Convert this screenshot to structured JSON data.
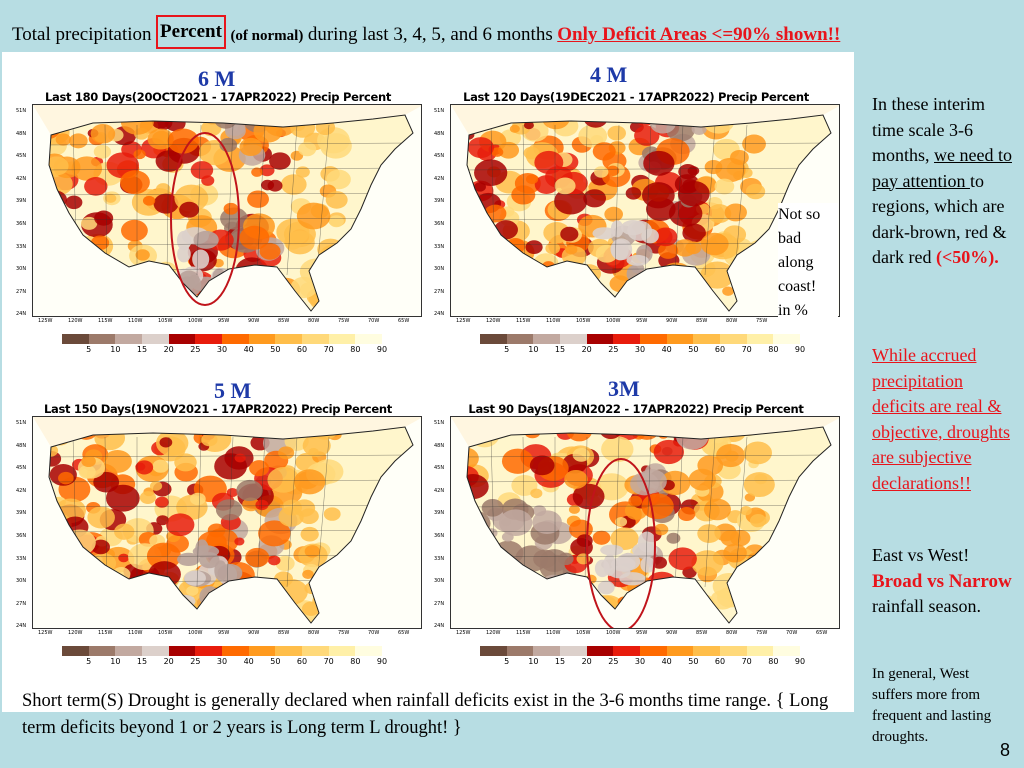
{
  "title": {
    "part1": "Total precipitation",
    "percent": "Percent",
    "of_normal": "(of normal)",
    "part2": "during last 3, 4, 5, and 6  months",
    "deficit": " Only Deficit Areas <=90% shown!!"
  },
  "maps": [
    {
      "id": "6m",
      "period_label": "6 M",
      "title": "Last 180 Days(20OCT2021 - 17APR2022) Precip Percent",
      "has_oval": true
    },
    {
      "id": "4m",
      "period_label": "4 M",
      "title": "Last 120 Days(19DEC2021 - 17APR2022) Precip Percent",
      "has_oval": false
    },
    {
      "id": "5m",
      "period_label": "5 M",
      "title": "Last 150 Days(19NOV2021 - 17APR2022) Precip Percent",
      "has_oval": false
    },
    {
      "id": "3m",
      "period_label": "3M",
      "title": "Last 90 Days(18JAN2022 - 17APR2022) Precip Percent",
      "has_oval": true
    }
  ],
  "lat_labels": [
    "51N",
    "48N",
    "45N",
    "42N",
    "39N",
    "36N",
    "33N",
    "30N",
    "27N",
    "24N"
  ],
  "lon_labels": [
    "125W",
    "120W",
    "115W",
    "110W",
    "105W",
    "100W",
    "95W",
    "90W",
    "85W",
    "80W",
    "75W",
    "70W",
    "65W"
  ],
  "legend": {
    "labels": [
      "5",
      "10",
      "15",
      "20",
      "25",
      "30",
      "40",
      "50",
      "60",
      "70",
      "80",
      "90"
    ],
    "colors": [
      "#6b4a3a",
      "#9c7a6a",
      "#c2a9a0",
      "#dcd0cb",
      "#a80000",
      "#e81c0c",
      "#ff6a00",
      "#ff9a1e",
      "#ffbe4a",
      "#ffd97a",
      "#fff0a8",
      "#fffde0"
    ]
  },
  "coast_note": [
    "Not so",
    "bad",
    "along",
    "coast!",
    "in %"
  ],
  "side": {
    "p1_a": "In these interim time scale 3-6 months, ",
    "p1_we": "we need to pay attention ",
    "p1_b": "to regions, which are dark-brown, red & dark red ",
    "p1_bold": "(<50%).",
    "p2": "While accrued precipitation deficits are real & objective, droughts are subjective declarations!!",
    "p3_a": "East  vs  West!",
    "p3_bold": "Broad vs Narrow",
    "p3_b": " rainfall season.",
    "p4": "In general, West suffers more from frequent and lasting droughts."
  },
  "bottom": "Short term(S) Drought is generally declared when rainfall deficits exist in the 3-6 months time range. { Long term deficits beyond 1 or 2 years is Long term L drought! }",
  "page_number": "8",
  "colors": {
    "red": "#e8141b",
    "blue": "#1e3aa8",
    "background": "#b7dde3"
  }
}
